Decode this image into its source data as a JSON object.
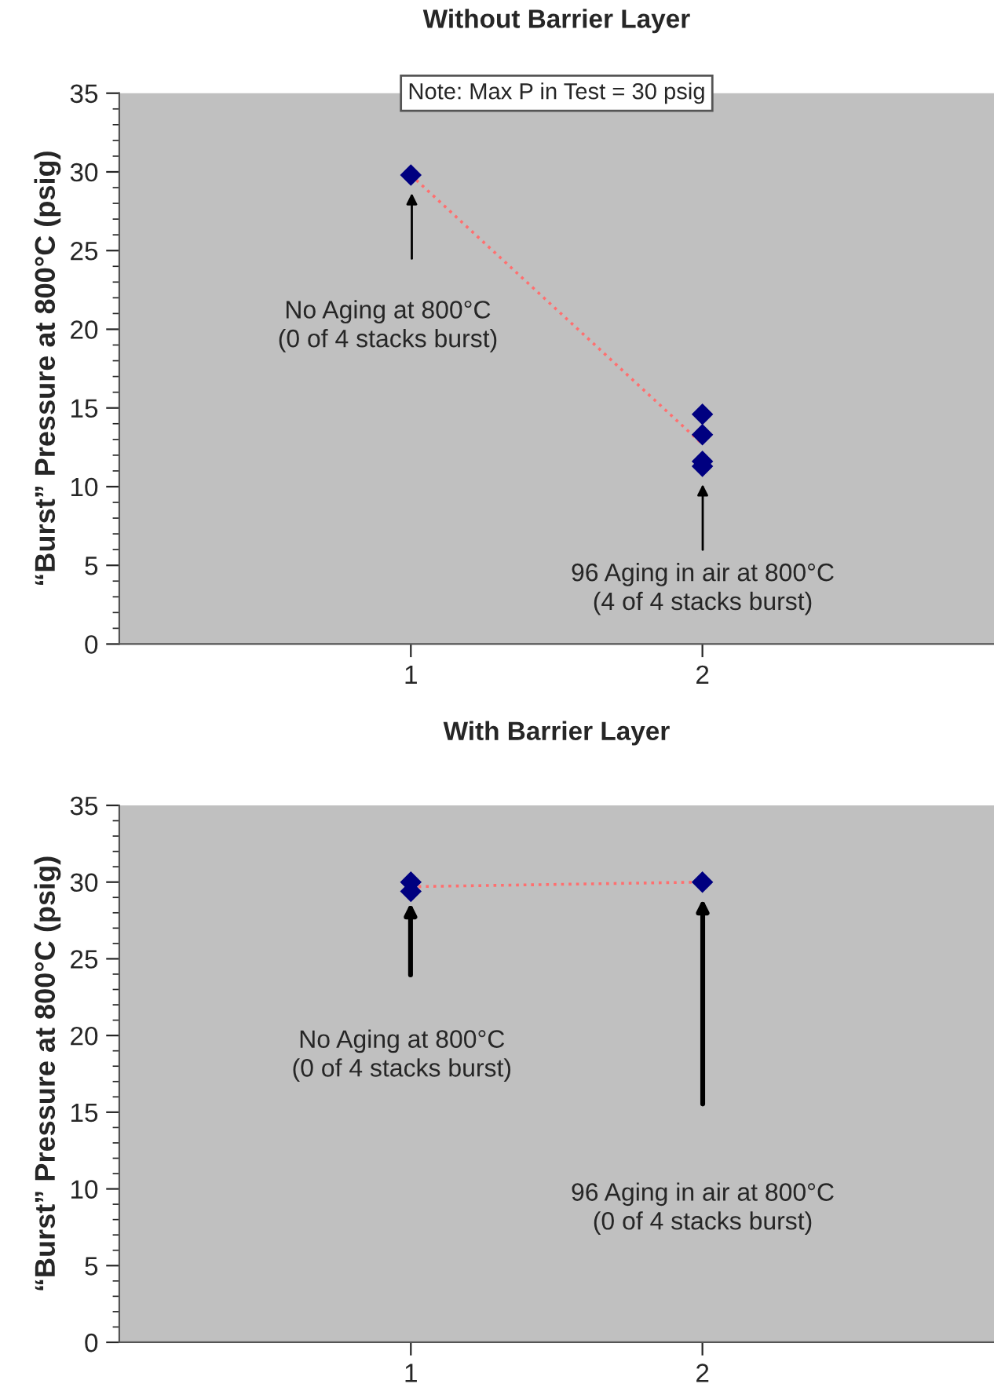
{
  "chart_data": [
    {
      "type": "scatter",
      "title": "Without Barrier Layer",
      "ylabel": "“Burst” Pressure at 800°C (psig)",
      "categories": [
        "1",
        "2"
      ],
      "ylim": [
        0,
        35
      ],
      "yticks": [
        0,
        5,
        10,
        15,
        20,
        25,
        30,
        35
      ],
      "marker": "diamond",
      "grid": false,
      "legend": false,
      "series": [
        {
          "type": "line",
          "color": "#ff6f6f",
          "line_style": "dotted",
          "marker": "none",
          "values": [
            29.8,
            12.7
          ]
        },
        {
          "type": "scatter",
          "color": "#000080",
          "x": [
            "1",
            "2",
            "2",
            "2",
            "2"
          ],
          "values": [
            29.8,
            14.6,
            13.3,
            11.6,
            11.3
          ]
        }
      ],
      "annotations": [
        "Note: Max P in Test = 30 psig",
        "No Aging at 800°C\n(0 of 4 stacks burst)",
        "96 Aging in air at 800°C\n(4 of 4 stacks burst)"
      ]
    },
    {
      "type": "scatter",
      "title": "With Barrier Layer",
      "ylabel": "“Burst” Pressure at 800°C (psig)",
      "categories": [
        "1",
        "2"
      ],
      "ylim": [
        0,
        35
      ],
      "yticks": [
        0,
        5,
        10,
        15,
        20,
        25,
        30,
        35
      ],
      "marker": "diamond",
      "grid": false,
      "legend": false,
      "series": [
        {
          "type": "line",
          "color": "#ff6f6f",
          "line_style": "dotted",
          "marker": "none",
          "values": [
            29.7,
            30
          ]
        },
        {
          "type": "scatter",
          "color": "#000080",
          "x": [
            "1",
            "1",
            "2"
          ],
          "values": [
            30,
            29.4,
            30
          ]
        }
      ],
      "annotations": [
        "No Aging at 800°C\n(0 of 4 stacks burst)",
        "96 Aging in air at 800°C\n(0 of 4 stacks burst)"
      ]
    }
  ]
}
